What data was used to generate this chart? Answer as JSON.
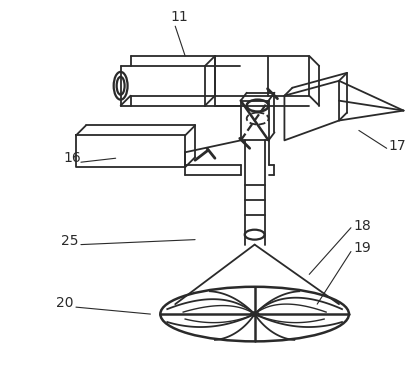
{
  "bg_color": "#ffffff",
  "line_color": "#2a2a2a",
  "figsize": [
    4.13,
    3.79
  ],
  "dpi": 100
}
